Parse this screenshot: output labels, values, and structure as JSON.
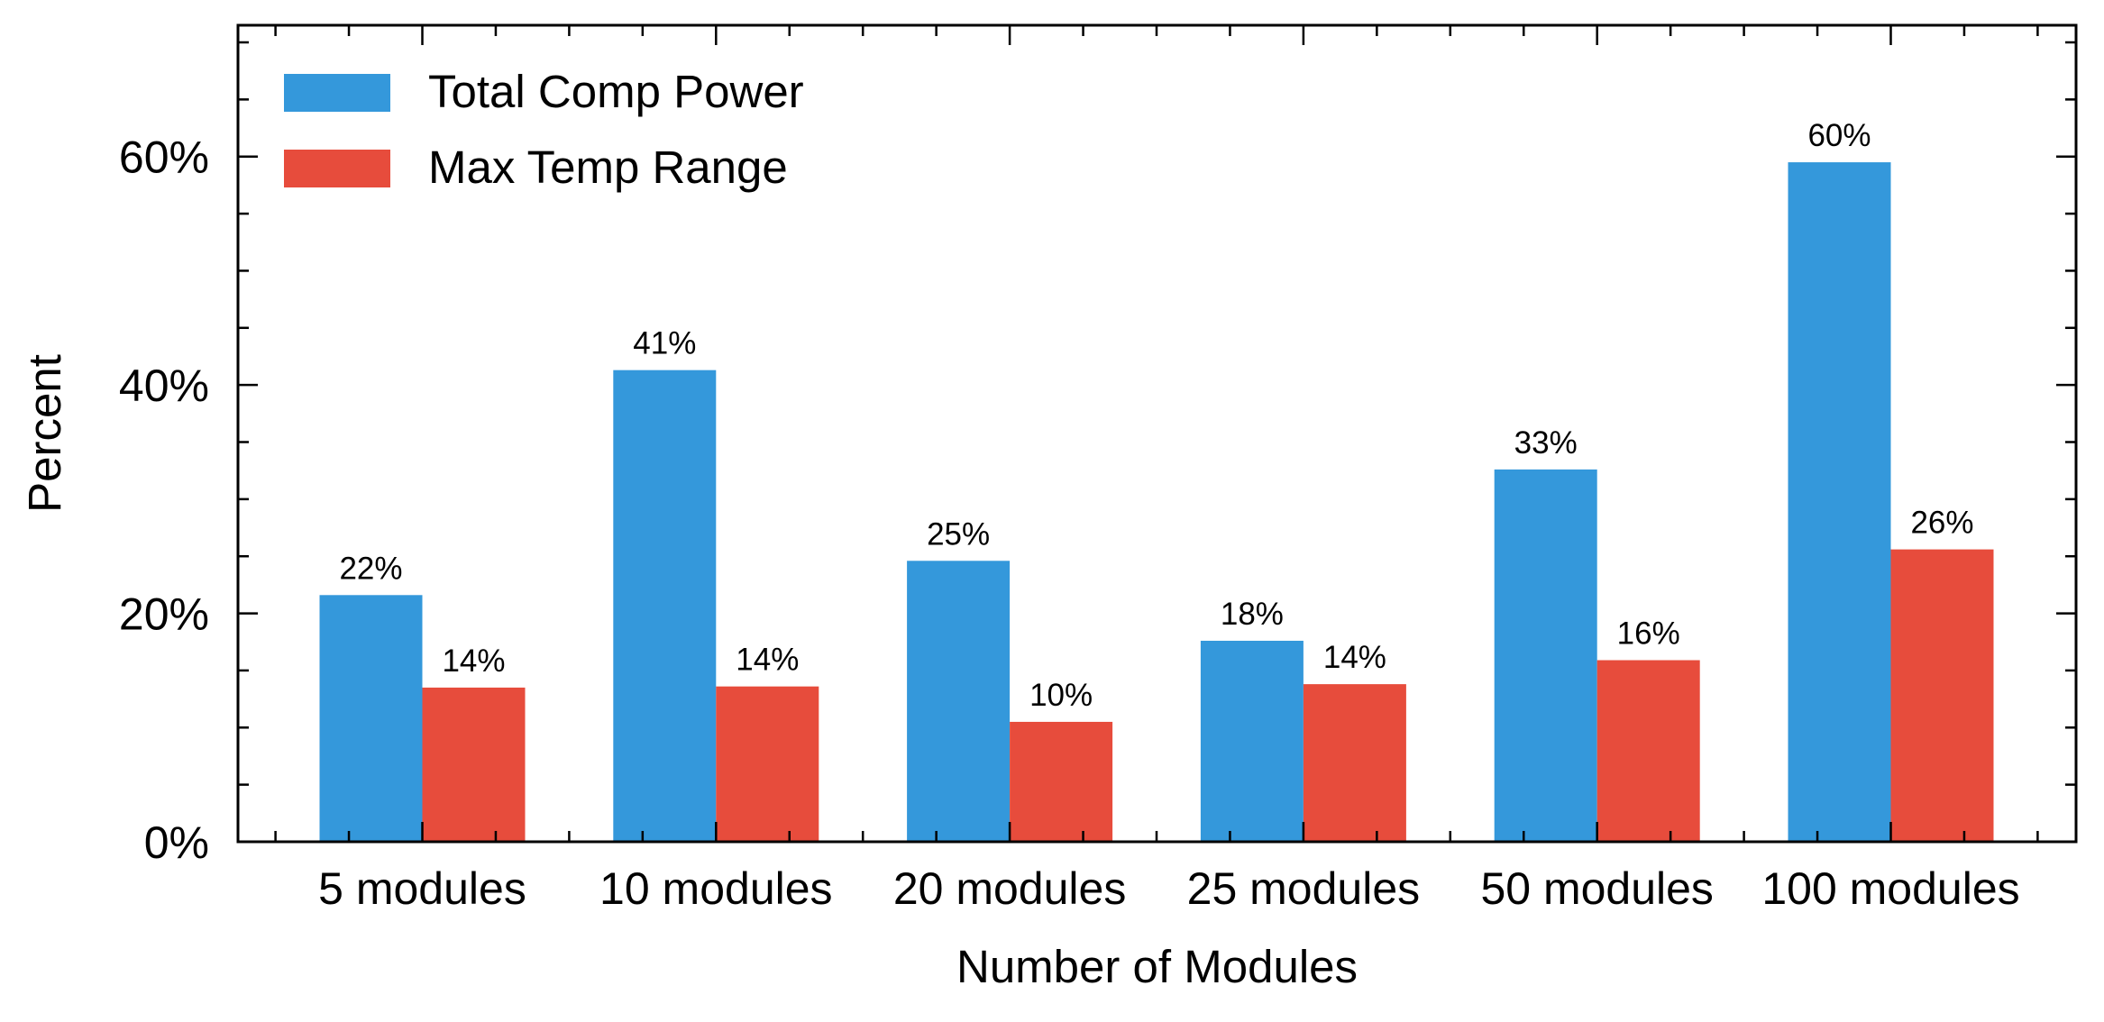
{
  "chart_data": {
    "type": "bar",
    "title": "",
    "xlabel": "Number of Modules",
    "ylabel": "Percent",
    "categories": [
      "5 modules",
      "10 modules",
      "20 modules",
      "25 modules",
      "50 modules",
      "100 modules"
    ],
    "series": [
      {
        "name": "Total Comp Power",
        "color": "#3498db",
        "values": [
          21.6,
          41.3,
          24.6,
          17.6,
          32.6,
          59.5
        ],
        "labels": [
          "22%",
          "41%",
          "25%",
          "18%",
          "33%",
          "60%"
        ]
      },
      {
        "name": "Max Temp Range",
        "color": "#e74c3c",
        "values": [
          13.5,
          13.6,
          10.5,
          13.8,
          15.9,
          25.6
        ],
        "labels": [
          "14%",
          "14%",
          "10%",
          "14%",
          "16%",
          "26%"
        ]
      }
    ],
    "ylim": [
      0,
      71.5
    ],
    "y_ticks": [
      0,
      20,
      40,
      60
    ],
    "y_tick_labels": [
      "0%",
      "20%",
      "40%",
      "60%"
    ],
    "y_minor_step": 5,
    "grid": false,
    "legend_position": "top-left"
  }
}
